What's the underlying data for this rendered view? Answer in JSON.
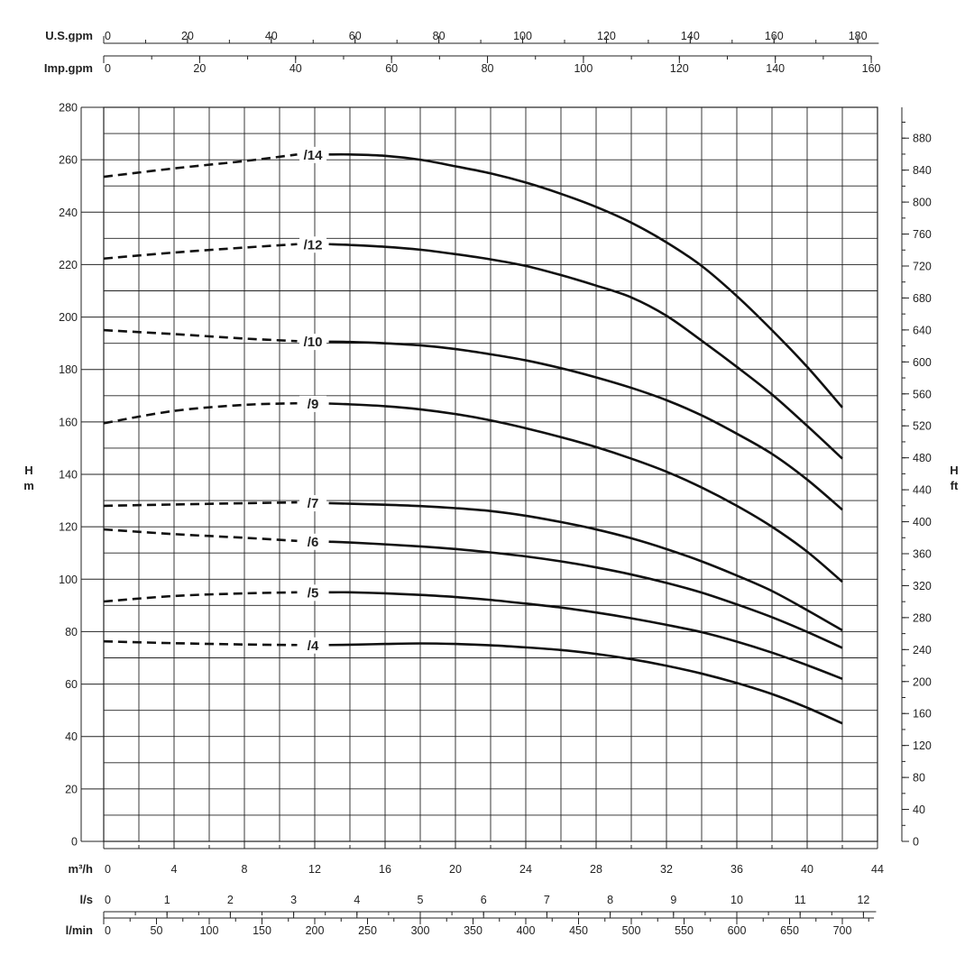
{
  "chart_data": {
    "type": "line",
    "title": "",
    "colors": {
      "line": "#111111",
      "grid": "#222222",
      "text": "#222222"
    },
    "x_axes": {
      "usgpm": {
        "label": "U.S.gpm",
        "range": [
          0,
          185
        ],
        "major": [
          0,
          20,
          40,
          60,
          80,
          100,
          120,
          140,
          160,
          180
        ],
        "minor_step": 10
      },
      "impgpm": {
        "label": "Imp.gpm",
        "range": [
          0,
          160
        ],
        "major": [
          0,
          20,
          40,
          60,
          80,
          100,
          120,
          140,
          160
        ],
        "minor_step": 10
      },
      "m3h": {
        "label": "m³/h",
        "range": [
          0,
          44
        ],
        "major": [
          0,
          4,
          8,
          12,
          16,
          20,
          24,
          28,
          32,
          36,
          40,
          44
        ],
        "minor_step": 2,
        "grid_step": 2
      },
      "ls": {
        "label": "l/s",
        "range": [
          0,
          12.2
        ],
        "major": [
          0,
          1,
          2,
          3,
          4,
          5,
          6,
          7,
          8,
          9,
          10,
          11,
          12
        ],
        "minor_step": 0.5
      },
      "lmin": {
        "label": "l/min",
        "range": [
          0,
          730
        ],
        "major": [
          0,
          50,
          100,
          150,
          200,
          250,
          300,
          350,
          400,
          450,
          500,
          550,
          600,
          650,
          700
        ],
        "minor_step": 25
      }
    },
    "y_left": {
      "label_line1": "H",
      "label_line2": "m",
      "range": [
        0,
        280
      ],
      "major": [
        0,
        20,
        40,
        60,
        80,
        100,
        120,
        140,
        160,
        180,
        200,
        220,
        240,
        260,
        280
      ],
      "grid_step": 10
    },
    "y_right": {
      "label_line1": "H",
      "label_line2": "ft",
      "range": [
        0,
        918.6
      ],
      "major": [
        0,
        40,
        80,
        120,
        160,
        200,
        240,
        280,
        320,
        360,
        400,
        440,
        480,
        520,
        560,
        600,
        640,
        680,
        720,
        760,
        800,
        840,
        880
      ],
      "minor_step": 20
    },
    "series": [
      {
        "name": "/14",
        "dashed": [
          [
            0,
            253.5
          ],
          [
            4,
            256.7
          ],
          [
            8,
            259.5
          ],
          [
            11,
            262
          ]
        ],
        "solid": [
          [
            12.8,
            262
          ],
          [
            14,
            262
          ],
          [
            16,
            261.5
          ],
          [
            18,
            260
          ],
          [
            20,
            257.5
          ],
          [
            22,
            254.8
          ],
          [
            24,
            251.3
          ],
          [
            26,
            247
          ],
          [
            28,
            242
          ],
          [
            30,
            236
          ],
          [
            32,
            228.5
          ],
          [
            34,
            219.5
          ],
          [
            36,
            208
          ],
          [
            38,
            195
          ],
          [
            40,
            181
          ],
          [
            42,
            165.5
          ]
        ]
      },
      {
        "name": "/12",
        "dashed": [
          [
            0,
            222.3
          ],
          [
            4,
            224.6
          ],
          [
            8,
            226.5
          ],
          [
            11,
            227.8
          ]
        ],
        "solid": [
          [
            12.8,
            227.8
          ],
          [
            14,
            227.5
          ],
          [
            16,
            226.8
          ],
          [
            18,
            225.7
          ],
          [
            20,
            224
          ],
          [
            22,
            222
          ],
          [
            24,
            219.5
          ],
          [
            26,
            216
          ],
          [
            28,
            212
          ],
          [
            30,
            207.5
          ],
          [
            32,
            200.5
          ],
          [
            34,
            191
          ],
          [
            36,
            181
          ],
          [
            38,
            170.5
          ],
          [
            40,
            158.5
          ],
          [
            42,
            146
          ]
        ]
      },
      {
        "name": "/10",
        "dashed": [
          [
            0,
            195
          ],
          [
            4,
            193.5
          ],
          [
            8,
            191.8
          ],
          [
            11,
            190.8
          ]
        ],
        "solid": [
          [
            12.8,
            190.6
          ],
          [
            14,
            190.5
          ],
          [
            16,
            190
          ],
          [
            18,
            189.2
          ],
          [
            20,
            187.8
          ],
          [
            22,
            185.8
          ],
          [
            24,
            183.5
          ],
          [
            26,
            180.5
          ],
          [
            28,
            177
          ],
          [
            30,
            173
          ],
          [
            32,
            168.3
          ],
          [
            34,
            162.5
          ],
          [
            36,
            155.5
          ],
          [
            38,
            147.8
          ],
          [
            40,
            138
          ],
          [
            42,
            126.5
          ]
        ]
      },
      {
        "name": "/9",
        "dashed": [
          [
            0,
            159.5
          ],
          [
            4,
            164.2
          ],
          [
            8,
            166.5
          ],
          [
            11,
            167.1
          ]
        ],
        "solid": [
          [
            12.8,
            167
          ],
          [
            14,
            166.7
          ],
          [
            16,
            166
          ],
          [
            18,
            164.8
          ],
          [
            20,
            163
          ],
          [
            22,
            160.6
          ],
          [
            24,
            157.6
          ],
          [
            26,
            154.2
          ],
          [
            28,
            150.4
          ],
          [
            30,
            146
          ],
          [
            32,
            141
          ],
          [
            34,
            135
          ],
          [
            36,
            128
          ],
          [
            38,
            120
          ],
          [
            40,
            110.5
          ],
          [
            42,
            99
          ]
        ]
      },
      {
        "name": "/7",
        "dashed": [
          [
            0,
            128
          ],
          [
            4,
            128.5
          ],
          [
            8,
            129
          ],
          [
            11,
            129.3
          ]
        ],
        "solid": [
          [
            12.8,
            129
          ],
          [
            14,
            128.8
          ],
          [
            16,
            128.4
          ],
          [
            18,
            127.9
          ],
          [
            20,
            127.1
          ],
          [
            22,
            126
          ],
          [
            24,
            124.2
          ],
          [
            26,
            121.8
          ],
          [
            28,
            119
          ],
          [
            30,
            115.6
          ],
          [
            32,
            111.5
          ],
          [
            34,
            106.8
          ],
          [
            36,
            101.4
          ],
          [
            38,
            95.5
          ],
          [
            40,
            88.2
          ],
          [
            42,
            80.5
          ]
        ]
      },
      {
        "name": "/6",
        "dashed": [
          [
            0,
            119
          ],
          [
            4,
            117.2
          ],
          [
            8,
            115.8
          ],
          [
            11,
            114.6
          ]
        ],
        "solid": [
          [
            12.8,
            114.3
          ],
          [
            14,
            114
          ],
          [
            16,
            113.3
          ],
          [
            18,
            112.5
          ],
          [
            20,
            111.5
          ],
          [
            22,
            110.2
          ],
          [
            24,
            108.7
          ],
          [
            26,
            106.8
          ],
          [
            28,
            104.5
          ],
          [
            30,
            101.8
          ],
          [
            32,
            98.6
          ],
          [
            34,
            94.9
          ],
          [
            36,
            90.4
          ],
          [
            38,
            85.5
          ],
          [
            40,
            79.9
          ],
          [
            42,
            73.8
          ]
        ]
      },
      {
        "name": "/5",
        "dashed": [
          [
            0,
            91.5
          ],
          [
            4,
            93.6
          ],
          [
            8,
            94.6
          ],
          [
            11,
            95
          ]
        ],
        "solid": [
          [
            12.8,
            95
          ],
          [
            14,
            95
          ],
          [
            16,
            94.6
          ],
          [
            18,
            94
          ],
          [
            20,
            93.2
          ],
          [
            22,
            92.1
          ],
          [
            24,
            90.7
          ],
          [
            26,
            89.2
          ],
          [
            28,
            87.3
          ],
          [
            30,
            85.1
          ],
          [
            32,
            82.6
          ],
          [
            34,
            79.8
          ],
          [
            36,
            76.2
          ],
          [
            38,
            72
          ],
          [
            40,
            67.2
          ],
          [
            42,
            62
          ]
        ]
      },
      {
        "name": "/4",
        "dashed": [
          [
            0,
            76.3
          ],
          [
            4,
            75.6
          ],
          [
            8,
            75.1
          ],
          [
            11,
            74.9
          ]
        ],
        "solid": [
          [
            12.8,
            74.9
          ],
          [
            14,
            75
          ],
          [
            16,
            75.3
          ],
          [
            18,
            75.5
          ],
          [
            20,
            75.3
          ],
          [
            22,
            74.8
          ],
          [
            24,
            74
          ],
          [
            26,
            73
          ],
          [
            28,
            71.5
          ],
          [
            30,
            69.5
          ],
          [
            32,
            67
          ],
          [
            34,
            64
          ],
          [
            36,
            60.4
          ],
          [
            38,
            56.2
          ],
          [
            40,
            51
          ],
          [
            42,
            45
          ]
        ]
      }
    ],
    "grid": true
  }
}
